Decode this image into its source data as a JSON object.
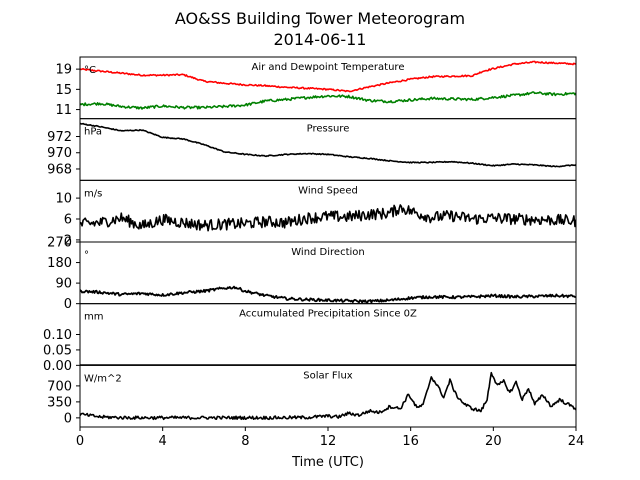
{
  "title": "AO&SS Building Tower Meteorogram",
  "subtitle": "2014-06-11",
  "xlabel": "Time (UTC)",
  "x_ticks": [
    0,
    4,
    8,
    12,
    16,
    20,
    24
  ],
  "chart_data": [
    {
      "type": "line",
      "title": "Air and Dewpoint Temperature",
      "unit": "°C",
      "ylim": [
        9.2,
        21.4
      ],
      "yticks": [
        11,
        15,
        19
      ],
      "xlim": [
        0,
        24
      ],
      "series": [
        {
          "color": "#ff0000",
          "width": 1.6,
          "x": [
            0,
            1,
            2,
            3,
            4,
            5,
            6,
            7,
            8,
            9,
            10,
            11,
            12,
            13,
            14,
            15,
            16,
            17,
            18,
            19,
            19.5,
            20,
            21,
            22,
            23,
            24
          ],
          "y": [
            19.0,
            18.6,
            18.2,
            17.8,
            17.8,
            17.9,
            16.6,
            16.2,
            15.9,
            15.7,
            15.4,
            15.2,
            15.0,
            14.6,
            15.5,
            16.3,
            17.0,
            17.5,
            17.6,
            17.7,
            18.6,
            19.1,
            20.0,
            20.4,
            20.2,
            20.0
          ],
          "noise": 0.15
        },
        {
          "color": "#008000",
          "width": 1.6,
          "x": [
            0,
            1,
            2,
            3,
            4,
            5,
            6,
            7,
            8,
            9,
            10,
            11,
            12,
            13,
            14,
            15,
            16,
            17,
            18,
            19,
            20,
            21,
            22,
            23,
            24
          ],
          "y": [
            12.0,
            12.2,
            11.6,
            11.3,
            11.7,
            11.4,
            11.4,
            11.6,
            11.9,
            12.7,
            13.0,
            13.4,
            13.7,
            13.6,
            12.8,
            12.6,
            12.9,
            13.2,
            13.1,
            13.0,
            13.4,
            13.8,
            14.3,
            14.0,
            14.2
          ],
          "noise": 0.25
        }
      ]
    },
    {
      "type": "line",
      "title": "Pressure",
      "unit": "hPa",
      "ylim": [
        966.6,
        974.2
      ],
      "yticks": [
        968,
        970,
        972
      ],
      "xlim": [
        0,
        24
      ],
      "series": [
        {
          "color": "#000000",
          "width": 1.6,
          "x": [
            0,
            1,
            2,
            3,
            4,
            5,
            6,
            7,
            8,
            9,
            10,
            11,
            12,
            13,
            14,
            15,
            16,
            17,
            18,
            19,
            20,
            21,
            22,
            23,
            24
          ],
          "y": [
            973.6,
            973.2,
            972.7,
            972.8,
            971.9,
            971.7,
            971.0,
            970.1,
            969.8,
            969.6,
            969.8,
            969.9,
            969.8,
            969.5,
            969.3,
            969.0,
            968.8,
            968.8,
            968.9,
            968.7,
            968.4,
            968.6,
            968.5,
            968.3,
            968.5
          ],
          "noise": 0.06
        }
      ]
    },
    {
      "type": "line",
      "title": "Wind Speed",
      "unit": "m/s",
      "ylim": [
        1.6,
        13.4
      ],
      "yticks": [
        2,
        6,
        10
      ],
      "xlim": [
        0,
        24
      ],
      "series": [
        {
          "color": "#000000",
          "width": 1.6,
          "x": [
            0,
            1,
            2,
            3,
            4,
            5,
            6,
            7,
            8,
            9,
            10,
            11,
            12,
            13,
            14,
            15,
            15.5,
            16,
            17,
            18,
            19,
            20,
            21,
            22,
            23,
            24
          ],
          "y": [
            5.0,
            5.3,
            6.2,
            4.6,
            5.9,
            5.3,
            4.8,
            5.0,
            5.1,
            5.5,
            5.3,
            6.2,
            6.5,
            6.4,
            6.9,
            7.1,
            8.2,
            7.5,
            6.3,
            6.6,
            6.0,
            6.2,
            6.0,
            5.9,
            5.8,
            5.6
          ],
          "noise": 1.1
        }
      ]
    },
    {
      "type": "line",
      "title": "Wind Direction",
      "unit": "°",
      "ylim": [
        0,
        270
      ],
      "yticks": [
        0,
        90,
        180,
        270
      ],
      "xlim": [
        0,
        24
      ],
      "series": [
        {
          "color": "#000000",
          "width": 1.8,
          "x": [
            0,
            1,
            2,
            3,
            4,
            5,
            6,
            7,
            7.5,
            8,
            9,
            10,
            11,
            12,
            13,
            14,
            15,
            16,
            17,
            18,
            19,
            20,
            21,
            22,
            23,
            24
          ],
          "y": [
            55,
            50,
            40,
            45,
            38,
            48,
            55,
            68,
            72,
            55,
            35,
            22,
            18,
            15,
            12,
            10,
            15,
            25,
            30,
            28,
            30,
            35,
            30,
            32,
            35,
            32
          ],
          "noise": 6
        }
      ]
    },
    {
      "type": "line",
      "title": "Accumulated Precipitation Since 0Z",
      "unit": "mm",
      "ylim": [
        0,
        0.2
      ],
      "yticks": [
        0.0,
        0.05,
        0.1
      ],
      "ytick_labels": [
        "0.00",
        "0.05",
        "0.10"
      ],
      "xlim": [
        0,
        24
      ],
      "series": [
        {
          "color": "#000000",
          "width": 2.2,
          "x": [
            0,
            24
          ],
          "y": [
            0,
            0
          ],
          "noise": 0
        }
      ]
    },
    {
      "type": "line",
      "title": "Solar Flux",
      "unit": "W/m^2",
      "ylim": [
        -200,
        1150
      ],
      "yticks": [
        0,
        350,
        700
      ],
      "xlim": [
        0,
        24
      ],
      "series": [
        {
          "color": "#000000",
          "width": 1.6,
          "x": [
            0,
            1,
            2,
            3,
            4,
            5,
            6,
            7,
            8,
            9,
            10,
            11,
            12,
            12.5,
            13,
            13.5,
            14,
            14.5,
            15,
            15.5,
            15.9,
            16.3,
            16.6,
            17,
            17.3,
            17.6,
            17.9,
            18.2,
            18.6,
            19,
            19.4,
            19.7,
            19.9,
            20.2,
            20.5,
            20.8,
            21.1,
            21.4,
            21.7,
            22,
            22.4,
            22.8,
            23.2,
            23.6,
            24
          ],
          "y": [
            80,
            20,
            5,
            3,
            3,
            3,
            3,
            3,
            3,
            3,
            5,
            10,
            40,
            20,
            100,
            60,
            150,
            120,
            250,
            200,
            520,
            220,
            280,
            900,
            700,
            450,
            820,
            500,
            300,
            200,
            150,
            400,
            1000,
            700,
            800,
            550,
            780,
            400,
            650,
            300,
            500,
            250,
            400,
            300,
            200
          ],
          "noise": 35
        }
      ]
    }
  ]
}
